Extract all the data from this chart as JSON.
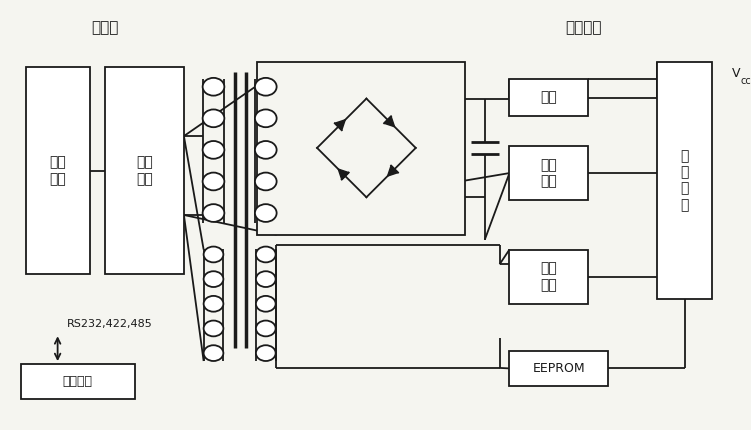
{
  "background_color": "#f5f5f0",
  "labels": {
    "reader": "读写器",
    "e_tag": "电子标签",
    "ctrl_module": "控制\n模块",
    "rw_module": "读写\n模块",
    "data_mgmt": "数据管理",
    "rs232": "RS232,422,485",
    "stabilize": "稳压",
    "data_demod": "数据\n解调",
    "data_mod": "数据\n调制",
    "ctrl_logic": "控\n制\n逻\n辑",
    "eeprom": "EEPROM",
    "vcc": "V"
  }
}
